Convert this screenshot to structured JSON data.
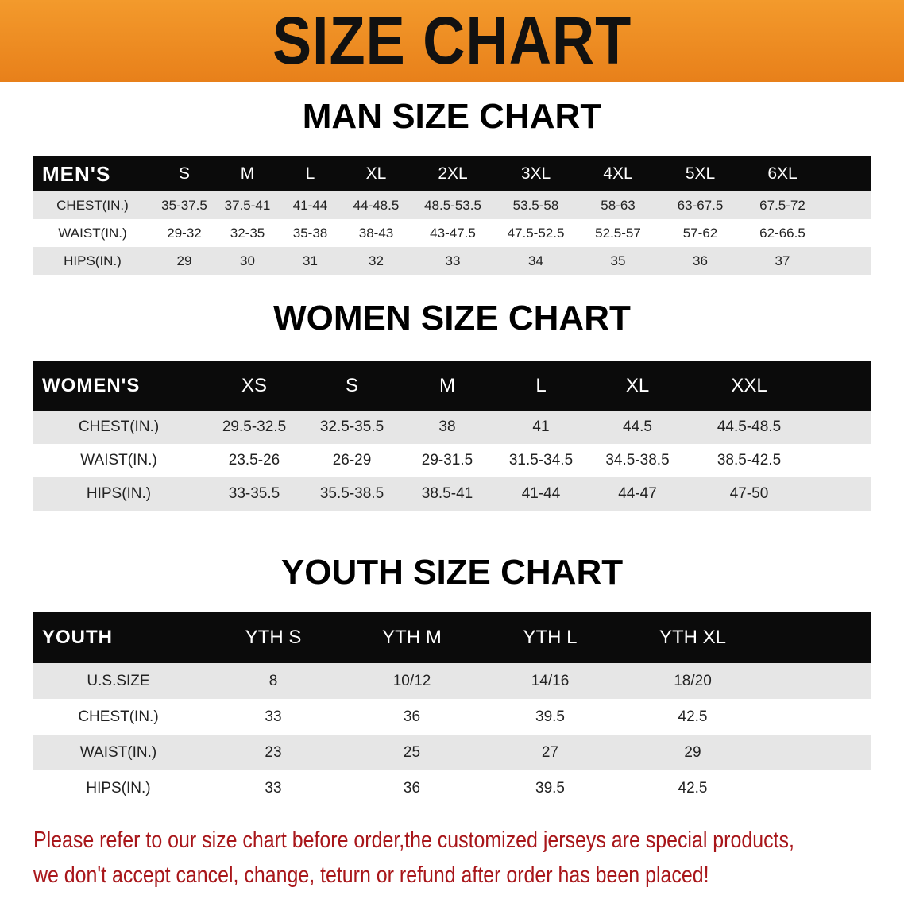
{
  "banner": {
    "title": "SIZE CHART",
    "color": "#ef8a1f"
  },
  "men": {
    "title": "MAN SIZE CHART",
    "header": [
      "MEN'S",
      "S",
      "M",
      "L",
      "XL",
      "2XL",
      "3XL",
      "4XL",
      "5XL",
      "6XL"
    ],
    "rows": [
      [
        "CHEST(IN.)",
        "35-37.5",
        "37.5-41",
        "41-44",
        "44-48.5",
        "48.5-53.5",
        "53.5-58",
        "58-63",
        "63-67.5",
        "67.5-72"
      ],
      [
        "WAIST(IN.)",
        "29-32",
        "32-35",
        "35-38",
        "38-43",
        "43-47.5",
        "47.5-52.5",
        "52.5-57",
        "57-62",
        "62-66.5"
      ],
      [
        "HIPS(IN.)",
        "29",
        "30",
        "31",
        "32",
        "33",
        "34",
        "35",
        "36",
        "37"
      ]
    ]
  },
  "women": {
    "title": "WOMEN SIZE CHART",
    "header": [
      "WOMEN'S",
      "XS",
      "S",
      "M",
      "L",
      "XL",
      "XXL"
    ],
    "rows": [
      [
        "CHEST(IN.)",
        "29.5-32.5",
        "32.5-35.5",
        "38",
        "41",
        "44.5",
        "44.5-48.5"
      ],
      [
        "WAIST(IN.)",
        "23.5-26",
        "26-29",
        "29-31.5",
        "31.5-34.5",
        "34.5-38.5",
        "38.5-42.5"
      ],
      [
        "HIPS(IN.)",
        "33-35.5",
        "35.5-38.5",
        "38.5-41",
        "41-44",
        "44-47",
        "47-50"
      ]
    ]
  },
  "youth": {
    "title": "YOUTH SIZE CHART",
    "header": [
      "YOUTH",
      "YTH S",
      "YTH M",
      "YTH L",
      "YTH XL"
    ],
    "rows": [
      [
        "U.S.SIZE",
        "8",
        "10/12",
        "14/16",
        "18/20"
      ],
      [
        "CHEST(IN.)",
        "33",
        "36",
        "39.5",
        "42.5"
      ],
      [
        "WAIST(IN.)",
        "23",
        "25",
        "27",
        "29"
      ],
      [
        "HIPS(IN.)",
        "33",
        "36",
        "39.5",
        "42.5"
      ]
    ]
  },
  "note": {
    "line1": "Please refer to our size chart before order,the customized jerseys are special products,",
    "line2": "we don't accept cancel, change, teturn or refund after order has been placed!",
    "color": "#a8161a"
  }
}
